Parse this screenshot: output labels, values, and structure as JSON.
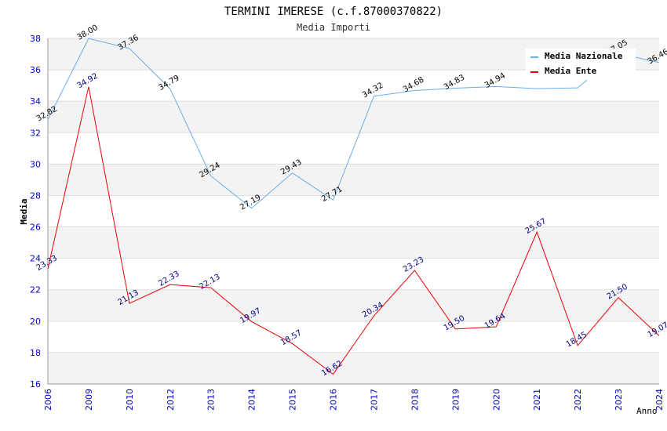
{
  "chart_data": {
    "type": "line",
    "title": "TERMINI IMERESE (c.f.87000370822)",
    "subtitle": "Media Importi",
    "xlabel": "Anno",
    "ylabel": "Media",
    "ylim": [
      16,
      38
    ],
    "yticks": [
      16,
      18,
      20,
      22,
      24,
      26,
      28,
      30,
      32,
      34,
      36,
      38
    ],
    "grid": true,
    "legend_position": "top-right",
    "categories": [
      "2006",
      "2009",
      "2010",
      "2012",
      "2013",
      "2014",
      "2015",
      "2016",
      "2017",
      "2018",
      "2019",
      "2020",
      "2021",
      "2022",
      "2023",
      "2024"
    ],
    "series": [
      {
        "name": "Media Nazionale",
        "color": "#6aaee8",
        "values": [
          32.82,
          38.0,
          37.36,
          34.79,
          29.24,
          27.19,
          29.43,
          27.71,
          34.32,
          34.68,
          34.83,
          34.94,
          34.8,
          34.85,
          37.05,
          36.46
        ],
        "labels": [
          "32.82",
          "38.00",
          "37.36",
          "34.79",
          "29.24",
          "27.19",
          "29.43",
          "27.71",
          "34.32",
          "34.68",
          "34.83",
          "34.94",
          "",
          "",
          "37.05",
          "36.46"
        ]
      },
      {
        "name": "Media Ente",
        "color": "#ee0000",
        "values": [
          23.33,
          34.92,
          21.13,
          22.33,
          22.13,
          19.97,
          18.57,
          16.62,
          20.34,
          23.23,
          19.5,
          19.64,
          25.67,
          18.45,
          21.5,
          19.07
        ],
        "labels": [
          "23.33",
          "34.92",
          "21.13",
          "22.33",
          "22.13",
          "19.97",
          "18.57",
          "16.62",
          "20.34",
          "23.23",
          "19.50",
          "19.64",
          "25.67",
          "18.45",
          "21.50",
          "19.07"
        ]
      }
    ]
  }
}
